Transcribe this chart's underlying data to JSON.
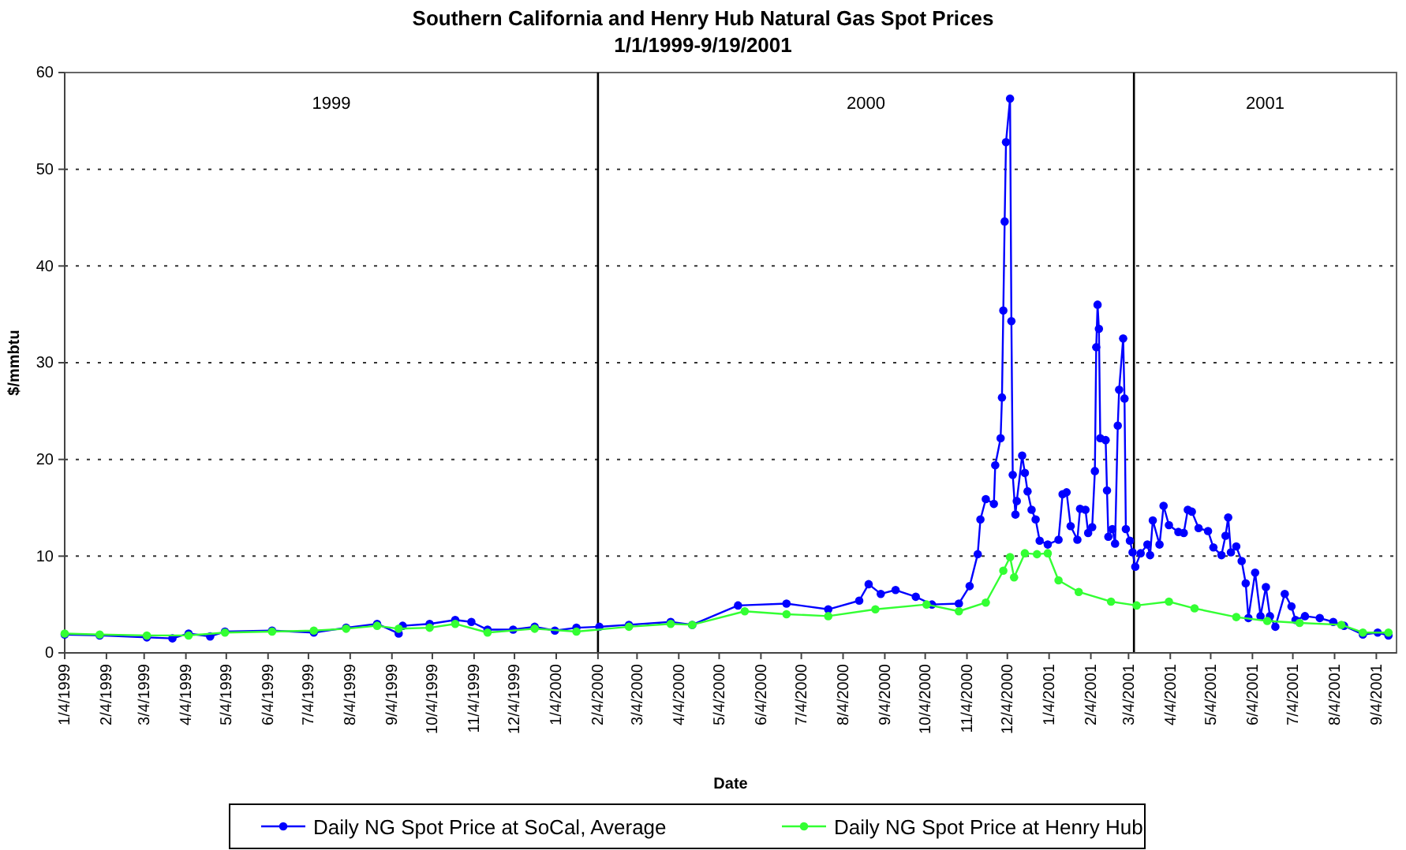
{
  "chart_data": {
    "type": "line",
    "title": "Southern California and Henry Hub Natural Gas Spot Prices",
    "subtitle": "1/1/1999-9/19/2001",
    "xlabel": "Date",
    "ylabel": "$/mmbtu",
    "xlim": [
      "1999-01-04",
      "2001-09-19"
    ],
    "ylim": [
      0,
      60
    ],
    "yticks": [
      0,
      10,
      20,
      30,
      40,
      50,
      60
    ],
    "xticks": [
      {
        "value": "1999-01-04",
        "label": "1/4/1999"
      },
      {
        "value": "1999-02-04",
        "label": "2/4/1999"
      },
      {
        "value": "1999-03-04",
        "label": "3/4/1999"
      },
      {
        "value": "1999-04-04",
        "label": "4/4/1999"
      },
      {
        "value": "1999-05-04",
        "label": "5/4/1999"
      },
      {
        "value": "1999-06-04",
        "label": "6/4/1999"
      },
      {
        "value": "1999-07-04",
        "label": "7/4/1999"
      },
      {
        "value": "1999-08-04",
        "label": "8/4/1999"
      },
      {
        "value": "1999-09-04",
        "label": "9/4/1999"
      },
      {
        "value": "1999-10-04",
        "label": "10/4/1999"
      },
      {
        "value": "1999-11-04",
        "label": "11/4/1999"
      },
      {
        "value": "1999-12-04",
        "label": "12/4/1999"
      },
      {
        "value": "2000-01-04",
        "label": "1/4/2000"
      },
      {
        "value": "2000-02-04",
        "label": "2/4/2000"
      },
      {
        "value": "2000-03-04",
        "label": "3/4/2000"
      },
      {
        "value": "2000-04-04",
        "label": "4/4/2000"
      },
      {
        "value": "2000-05-04",
        "label": "5/4/2000"
      },
      {
        "value": "2000-06-04",
        "label": "6/4/2000"
      },
      {
        "value": "2000-07-04",
        "label": "7/4/2000"
      },
      {
        "value": "2000-08-04",
        "label": "8/4/2000"
      },
      {
        "value": "2000-09-04",
        "label": "9/4/2000"
      },
      {
        "value": "2000-10-04",
        "label": "10/4/2000"
      },
      {
        "value": "2000-11-04",
        "label": "11/4/2000"
      },
      {
        "value": "2000-12-04",
        "label": "12/4/2000"
      },
      {
        "value": "2001-01-04",
        "label": "1/4/2001"
      },
      {
        "value": "2001-02-04",
        "label": "2/4/2001"
      },
      {
        "value": "2001-03-04",
        "label": "3/4/2001"
      },
      {
        "value": "2001-04-04",
        "label": "4/4/2001"
      },
      {
        "value": "2001-05-04",
        "label": "5/4/2001"
      },
      {
        "value": "2001-06-04",
        "label": "6/4/2001"
      },
      {
        "value": "2001-07-04",
        "label": "7/4/2001"
      },
      {
        "value": "2001-08-04",
        "label": "8/4/2001"
      },
      {
        "value": "2001-09-04",
        "label": "9/4/2001"
      }
    ],
    "grid": "y",
    "legend": "bottom",
    "marker": "circle",
    "line_style": "solid",
    "ref_lines": [
      {
        "axis": "x",
        "value": "2000-02-04",
        "color": "#000000"
      },
      {
        "axis": "x",
        "value": "2001-03-08",
        "color": "#000000"
      }
    ],
    "annotations": [
      "1999",
      "2000",
      "2001"
    ],
    "series": [
      {
        "name": "Daily NG Spot Price at SoCal, Average",
        "color": "#0000ff",
        "x": [
          "1999-01-04",
          "1999-01-30",
          "1999-03-06",
          "1999-03-25",
          "1999-04-06",
          "1999-04-22",
          "1999-05-03",
          "1999-06-07",
          "1999-07-08",
          "1999-08-01",
          "1999-08-24",
          "1999-09-09",
          "1999-09-12",
          "1999-10-02",
          "1999-10-21",
          "1999-11-02",
          "1999-11-14",
          "1999-12-03",
          "1999-12-19",
          "2000-01-03",
          "2000-01-19",
          "2000-02-05",
          "2000-02-27",
          "2000-03-29",
          "2000-04-14",
          "2000-05-18",
          "2000-06-23",
          "2000-07-24",
          "2000-08-16",
          "2000-08-23",
          "2000-09-01",
          "2000-09-12",
          "2000-09-27",
          "2000-10-09",
          "2000-10-29",
          "2000-11-06",
          "2000-11-12",
          "2000-11-14",
          "2000-11-18",
          "2000-11-24",
          "2000-11-25",
          "2000-11-29",
          "2000-11-30",
          "2000-12-01",
          "2000-12-02",
          "2000-12-03",
          "2000-12-06",
          "2000-12-07",
          "2000-12-08",
          "2000-12-10",
          "2000-12-11",
          "2000-12-15",
          "2000-12-17",
          "2000-12-19",
          "2000-12-22",
          "2000-12-25",
          "2000-12-28",
          "2001-01-03",
          "2001-01-11",
          "2001-01-14",
          "2001-01-17",
          "2001-01-20",
          "2001-01-25",
          "2001-01-27",
          "2001-01-31",
          "2001-02-02",
          "2001-02-05",
          "2001-02-07",
          "2001-02-08",
          "2001-02-09",
          "2001-02-10",
          "2001-02-11",
          "2001-02-15",
          "2001-02-16",
          "2001-02-17",
          "2001-02-20",
          "2001-02-22",
          "2001-02-24",
          "2001-02-25",
          "2001-02-28",
          "2001-03-01",
          "2001-03-02",
          "2001-03-05",
          "2001-03-07",
          "2001-03-09",
          "2001-03-13",
          "2001-03-18",
          "2001-03-20",
          "2001-03-22",
          "2001-03-27",
          "2001-03-30",
          "2001-04-03",
          "2001-04-10",
          "2001-04-14",
          "2001-04-17",
          "2001-04-20",
          "2001-04-25",
          "2001-05-02",
          "2001-05-06",
          "2001-05-12",
          "2001-05-15",
          "2001-05-17",
          "2001-05-19",
          "2001-05-23",
          "2001-05-27",
          "2001-05-30",
          "2001-06-01",
          "2001-06-06",
          "2001-06-10",
          "2001-06-14",
          "2001-06-17",
          "2001-06-21",
          "2001-06-28",
          "2001-07-03",
          "2001-07-06",
          "2001-07-13",
          "2001-07-24",
          "2001-08-03",
          "2001-08-11",
          "2001-08-25",
          "2001-09-05",
          "2001-09-13"
        ],
        "values": [
          1.9,
          1.8,
          1.6,
          1.5,
          2.0,
          1.7,
          2.2,
          2.3,
          2.1,
          2.6,
          3.0,
          2.0,
          2.8,
          3.0,
          3.4,
          3.2,
          2.4,
          2.4,
          2.7,
          2.3,
          2.6,
          2.7,
          2.9,
          3.2,
          2.9,
          4.9,
          5.1,
          4.5,
          5.4,
          7.1,
          6.1,
          6.5,
          5.8,
          5.0,
          5.1,
          6.9,
          10.2,
          13.8,
          15.9,
          15.4,
          19.4,
          22.2,
          26.4,
          35.4,
          44.6,
          52.8,
          57.3,
          34.3,
          18.4,
          14.3,
          15.7,
          20.4,
          18.6,
          16.7,
          14.8,
          13.8,
          11.6,
          11.2,
          11.7,
          16.4,
          16.6,
          13.1,
          11.7,
          14.9,
          14.8,
          12.4,
          13.0,
          18.8,
          31.6,
          36.0,
          33.5,
          22.2,
          22.0,
          16.8,
          12.0,
          12.8,
          11.3,
          23.5,
          27.2,
          32.5,
          26.3,
          12.8,
          11.6,
          10.4,
          8.9,
          10.3,
          11.2,
          10.1,
          13.7,
          11.2,
          15.2,
          13.2,
          12.5,
          12.4,
          14.8,
          14.6,
          12.9,
          12.6,
          10.9,
          10.1,
          12.1,
          14.0,
          10.4,
          11.0,
          9.5,
          7.2,
          3.6,
          8.3,
          3.8,
          6.8,
          3.8,
          2.7,
          6.1,
          4.8,
          3.4,
          3.8,
          3.6,
          3.2,
          2.8,
          1.9,
          2.1,
          1.8
        ]
      },
      {
        "name": "Daily NG Spot Price at Henry Hub",
        "color": "#33ff33",
        "x": [
          "1999-01-04",
          "1999-01-30",
          "1999-03-06",
          "1999-04-06",
          "1999-05-03",
          "1999-06-07",
          "1999-07-08",
          "1999-08-01",
          "1999-08-24",
          "1999-09-09",
          "1999-10-02",
          "1999-10-21",
          "1999-11-14",
          "1999-12-19",
          "2000-01-19",
          "2000-02-27",
          "2000-03-29",
          "2000-04-14",
          "2000-05-23",
          "2000-06-23",
          "2000-07-24",
          "2000-08-28",
          "2000-10-05",
          "2000-10-29",
          "2000-11-18",
          "2000-12-01",
          "2000-12-06",
          "2000-12-09",
          "2000-12-17",
          "2000-12-26",
          "2001-01-03",
          "2001-01-11",
          "2001-01-26",
          "2001-02-19",
          "2001-03-10",
          "2001-04-03",
          "2001-04-22",
          "2001-05-23",
          "2001-06-15",
          "2001-07-09",
          "2001-08-09",
          "2001-08-25",
          "2001-09-13"
        ],
        "values": [
          2.0,
          1.9,
          1.8,
          1.8,
          2.1,
          2.2,
          2.3,
          2.5,
          2.8,
          2.5,
          2.6,
          3.0,
          2.1,
          2.5,
          2.2,
          2.7,
          3.0,
          2.9,
          4.3,
          4.0,
          3.8,
          4.5,
          5.0,
          4.3,
          5.2,
          8.5,
          9.9,
          7.8,
          10.3,
          10.2,
          10.3,
          7.5,
          6.3,
          5.3,
          4.9,
          5.3,
          4.6,
          3.7,
          3.3,
          3.1,
          2.9,
          2.1,
          2.1
        ]
      }
    ]
  }
}
